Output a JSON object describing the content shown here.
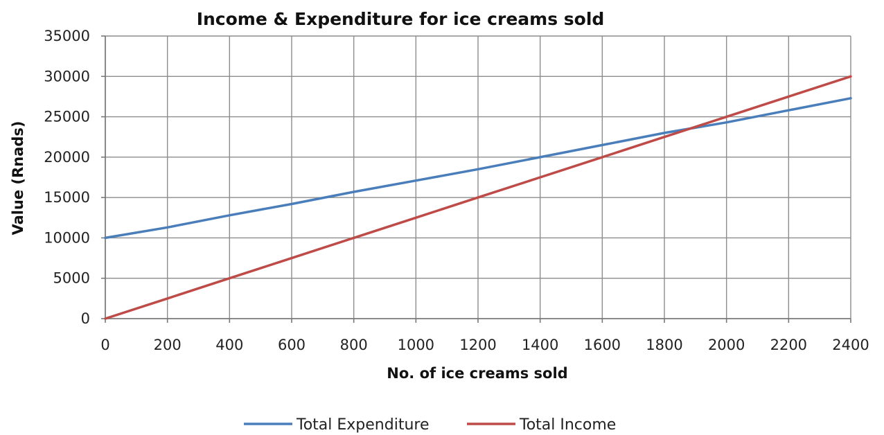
{
  "chart_data": {
    "type": "line",
    "title": "Income & Expenditure for ice creams sold",
    "xlabel": "No. of ice creams sold",
    "ylabel": "Value (Rnads)",
    "xlim": [
      0,
      2400
    ],
    "ylim": [
      0,
      35000
    ],
    "x_ticks": [
      0,
      200,
      400,
      600,
      800,
      1000,
      1200,
      1400,
      1600,
      1800,
      2000,
      2200,
      2400
    ],
    "y_ticks": [
      0,
      5000,
      10000,
      15000,
      20000,
      25000,
      30000,
      35000
    ],
    "x_tick_labels": [
      "0",
      "200",
      "400",
      "600",
      "800",
      "1000",
      "1200",
      "1400",
      "1600",
      "1800",
      "2000",
      "2200",
      "2400"
    ],
    "y_tick_labels": [
      "0",
      "5000",
      "10000",
      "15000",
      "20000",
      "25000",
      "30000",
      "35000"
    ],
    "grid": true,
    "legend_position": "bottom",
    "x": [
      0,
      200,
      400,
      600,
      800,
      1000,
      1200,
      1400,
      1600,
      1800,
      2000,
      2200,
      2400
    ],
    "series": [
      {
        "name": "Total Expenditure",
        "color": "#4a7ebb",
        "values": [
          10000,
          11300,
          12800,
          14200,
          15700,
          17100,
          18500,
          20000,
          21500,
          23000,
          24300,
          25800,
          27300
        ]
      },
      {
        "name": "Total Income",
        "color": "#be4b48",
        "values": [
          0,
          2500,
          5000,
          7500,
          10000,
          12500,
          15000,
          17500,
          20000,
          22500,
          25000,
          27500,
          30000
        ]
      }
    ]
  }
}
